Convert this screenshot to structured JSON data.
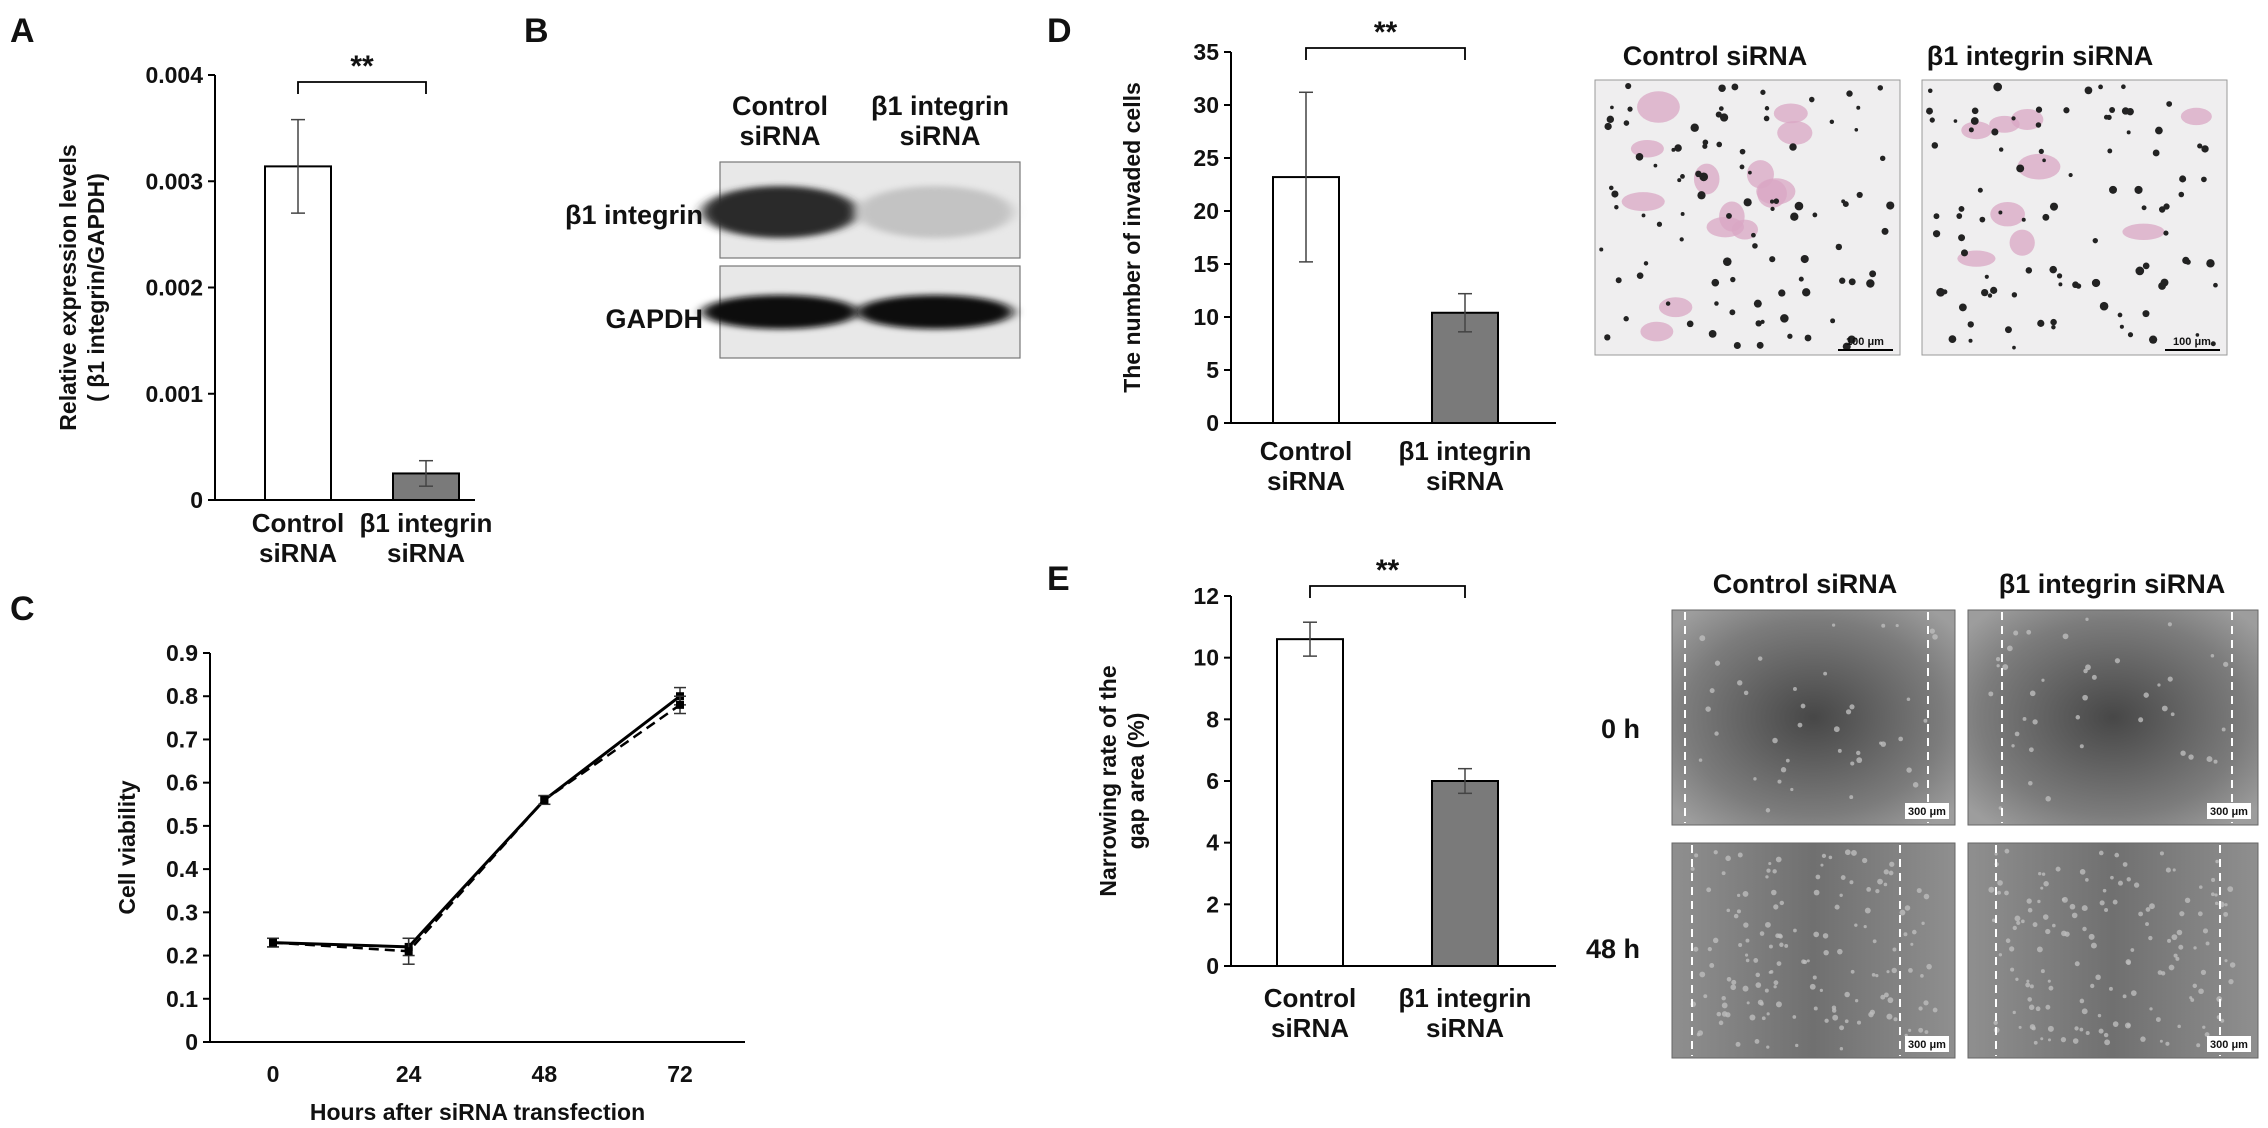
{
  "panels": {
    "A": "A",
    "B": "B",
    "C": "C",
    "D": "D",
    "E": "E"
  },
  "blot": {
    "lane_headers": [
      "Control\nsiRNA",
      "β1 integrin\nsiRNA"
    ],
    "rows": [
      {
        "label": "β1 integrin",
        "intensity": [
          0.85,
          0.18
        ]
      },
      {
        "label": "GAPDH",
        "intensity": [
          1.0,
          1.0
        ]
      }
    ]
  },
  "invasion_images": {
    "headers": [
      "Control siRNA",
      "β1 integrin siRNA"
    ],
    "scale_bar": "100 μm"
  },
  "wound_images": {
    "headers": [
      "Control siRNA",
      "β1 integrin siRNA"
    ],
    "rows": [
      "0 h",
      "48 h"
    ],
    "scale_bar": "300 μm"
  },
  "colors": {
    "control_bar": "#ffffff",
    "knockdown_bar": "#7a7a7a",
    "line": "#000000"
  },
  "chart_data": [
    {
      "panel": "A",
      "type": "bar",
      "categories": [
        "Control\nsiRNA",
        "β1 integrin\nsiRNA"
      ],
      "values": [
        0.00314,
        0.00025
      ],
      "errors": [
        0.00044,
        0.00012
      ],
      "ylabel": "Relative expression levels\n( β1 integrin/GAPDH)",
      "ylim": [
        0,
        0.004
      ],
      "yticks": [
        "0",
        "0.001",
        "0.002",
        "0.003",
        "0.004"
      ],
      "significance": "**"
    },
    {
      "panel": "C",
      "type": "line",
      "x": [
        0,
        24,
        48,
        72
      ],
      "xticks": [
        "0",
        "24",
        "48",
        "72"
      ],
      "series": [
        {
          "values": [
            0.23,
            0.22,
            0.56,
            0.8
          ],
          "errors": [
            0.01,
            0.02,
            0.01,
            0.02
          ],
          "style": "solid"
        },
        {
          "values": [
            0.23,
            0.21,
            0.56,
            0.78
          ],
          "errors": [
            0.01,
            0.03,
            0.01,
            0.02
          ],
          "style": "dashed"
        }
      ],
      "xlabel": "Hours after siRNA transfection",
      "ylabel": "Cell viability",
      "ylim": [
        0,
        0.9
      ],
      "yticks": [
        "0",
        "0.1",
        "0.2",
        "0.3",
        "0.4",
        "0.5",
        "0.6",
        "0.7",
        "0.8",
        "0.9"
      ]
    },
    {
      "panel": "D",
      "type": "bar",
      "categories": [
        "Control\nsiRNA",
        "β1 integrin\nsiRNA"
      ],
      "values": [
        23.2,
        10.4
      ],
      "errors": [
        8.0,
        1.8
      ],
      "ylabel": "The number of invaded cells",
      "ylim": [
        0,
        35
      ],
      "yticks": [
        "0",
        "5",
        "10",
        "15",
        "20",
        "25",
        "30",
        "35"
      ],
      "significance": "**"
    },
    {
      "panel": "E",
      "type": "bar",
      "categories": [
        "Control\nsiRNA",
        "β1 integrin\nsiRNA"
      ],
      "values": [
        10.6,
        6.0
      ],
      "errors": [
        0.55,
        0.4
      ],
      "ylabel": "Narrowing rate of the\ngap area (%)",
      "ylim": [
        0,
        12
      ],
      "yticks": [
        "0",
        "2",
        "4",
        "6",
        "8",
        "10",
        "12"
      ],
      "significance": "**"
    }
  ]
}
